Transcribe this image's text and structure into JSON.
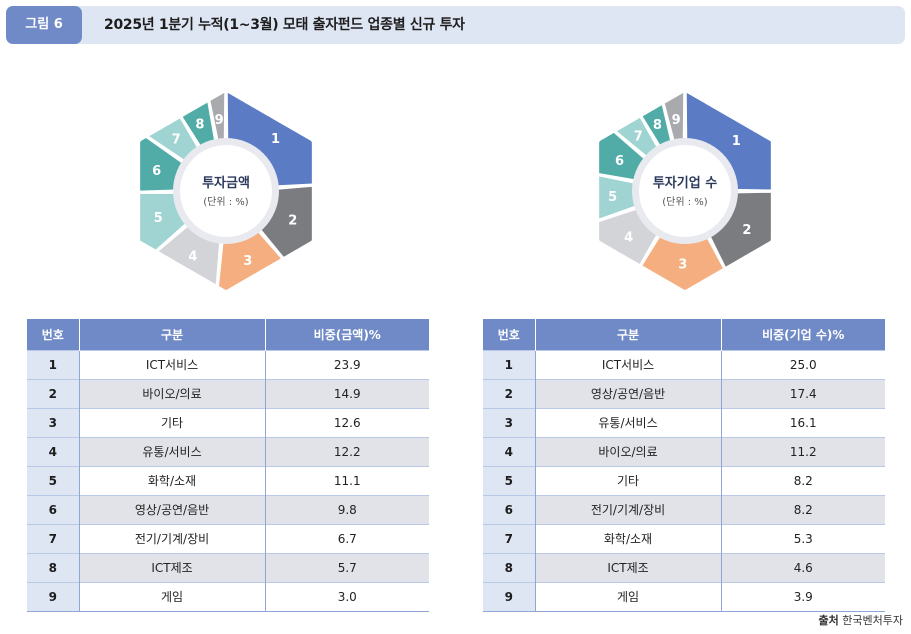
{
  "figure": {
    "badge": "그림 6",
    "title": "2025년 1분기 누적(1~3월) 모태 출자펀드 업종별 신규 투자"
  },
  "colors": [
    "#5b7bc4",
    "#7b7c80",
    "#f4ae7f",
    "#d3d4d8",
    "#9fd4d3",
    "#51aca7",
    "#9fd4d3",
    "#51aca7",
    "#a9aaae"
  ],
  "chart_data": [
    {
      "type": "pie",
      "title": "투자금액",
      "unit": "(단위 : %)",
      "slice_labels": [
        "1",
        "2",
        "3",
        "4",
        "5",
        "6",
        "7",
        "8",
        "9"
      ],
      "values": [
        23.9,
        14.9,
        12.6,
        12.2,
        11.1,
        9.8,
        6.7,
        5.7,
        3.0
      ]
    },
    {
      "type": "pie",
      "title": "투자기업 수",
      "unit": "(단위 : %)",
      "slice_labels": [
        "1",
        "2",
        "3",
        "4",
        "5",
        "6",
        "7",
        "8",
        "9"
      ],
      "values": [
        25.0,
        17.4,
        16.1,
        11.2,
        8.2,
        8.2,
        5.3,
        4.6,
        3.9
      ]
    }
  ],
  "tables": [
    {
      "headers": [
        "번호",
        "구분",
        "비중(금액)%"
      ],
      "rows": [
        [
          "1",
          "ICT서비스",
          "23.9"
        ],
        [
          "2",
          "바이오/의료",
          "14.9"
        ],
        [
          "3",
          "기타",
          "12.6"
        ],
        [
          "4",
          "유통/서비스",
          "12.2"
        ],
        [
          "5",
          "화학/소재",
          "11.1"
        ],
        [
          "6",
          "영상/공연/음반",
          "9.8"
        ],
        [
          "7",
          "전기/기계/장비",
          "6.7"
        ],
        [
          "8",
          "ICT제조",
          "5.7"
        ],
        [
          "9",
          "게임",
          "3.0"
        ]
      ]
    },
    {
      "headers": [
        "번호",
        "구분",
        "비중(기업 수)%"
      ],
      "rows": [
        [
          "1",
          "ICT서비스",
          "25.0"
        ],
        [
          "2",
          "영상/공연/음반",
          "17.4"
        ],
        [
          "3",
          "유통/서비스",
          "16.1"
        ],
        [
          "4",
          "바이오/의료",
          "11.2"
        ],
        [
          "5",
          "기타",
          "8.2"
        ],
        [
          "6",
          "전기/기계/장비",
          "8.2"
        ],
        [
          "7",
          "화학/소재",
          "5.3"
        ],
        [
          "8",
          "ICT제조",
          "4.6"
        ],
        [
          "9",
          "게임",
          "3.9"
        ]
      ]
    }
  ],
  "source": {
    "label": "출처",
    "name": "한국벤처투자"
  }
}
